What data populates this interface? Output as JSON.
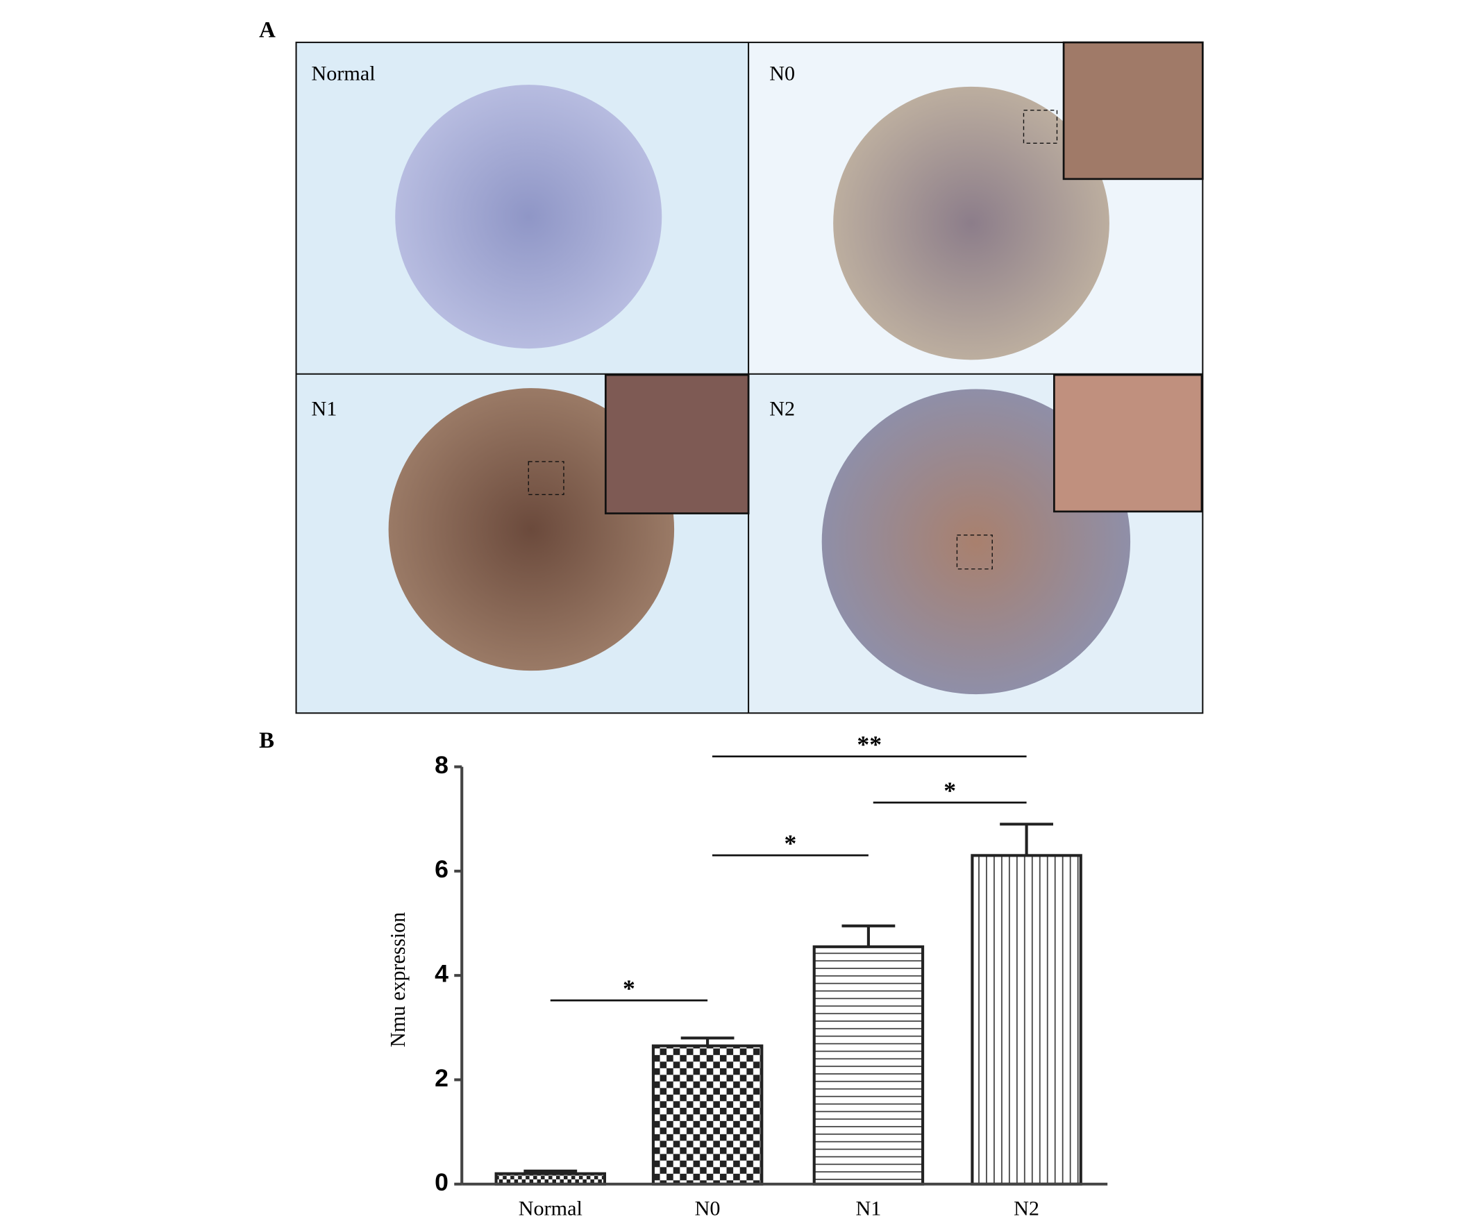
{
  "panel_a": {
    "label": "A",
    "images": [
      "Normal",
      "N0",
      "N1",
      "N2"
    ]
  },
  "panel_b": {
    "label": "B"
  },
  "chart_data": {
    "type": "bar",
    "ylabel": "Nmu expression",
    "categories": [
      "Normal",
      "N0",
      "N1",
      "N2"
    ],
    "values": [
      0.2,
      2.65,
      4.55,
      6.3
    ],
    "errors": [
      0.05,
      0.15,
      0.4,
      0.6
    ],
    "patterns": [
      "checker-small",
      "checker",
      "horizontal",
      "vertical"
    ],
    "color": "#222222",
    "ylim": [
      0,
      8
    ],
    "yticks": [
      0,
      2,
      4,
      6,
      8
    ],
    "annotations": [
      {
        "text": "*",
        "from": 0,
        "to": 1
      },
      {
        "text": "*",
        "from": 1,
        "to": 2
      },
      {
        "text": "*",
        "from": 2,
        "to": 3
      },
      {
        "text": "**",
        "from": 1,
        "to": 3
      }
    ]
  }
}
